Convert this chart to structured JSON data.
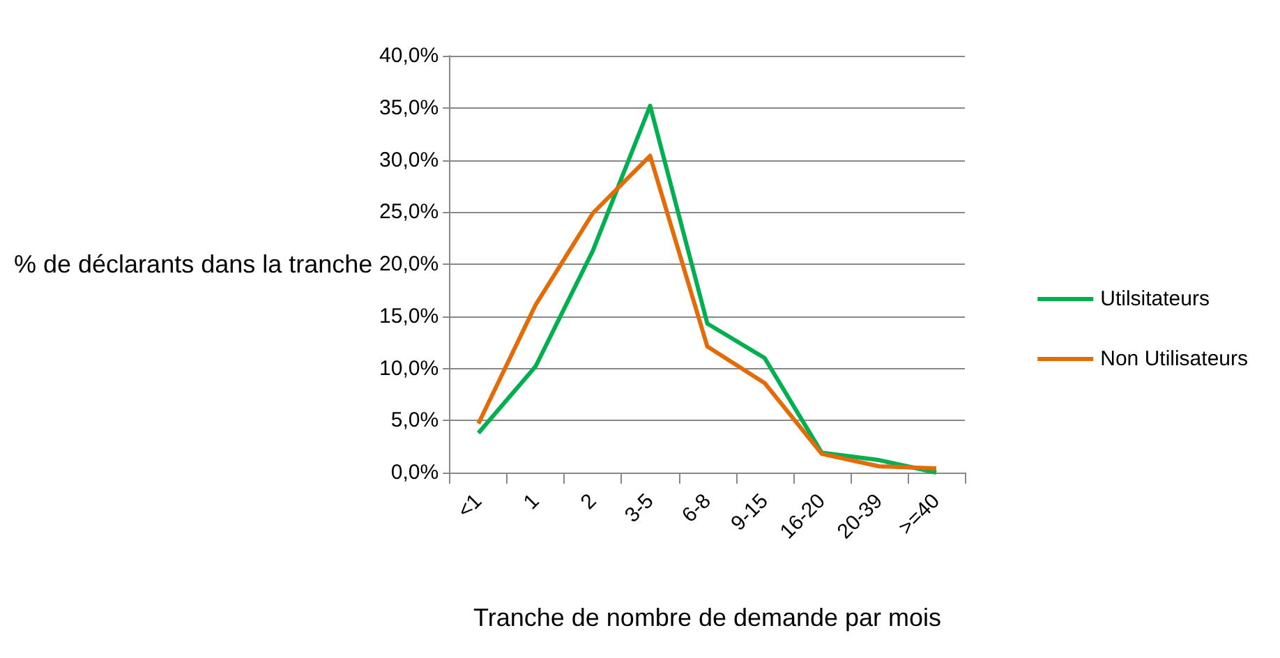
{
  "chart_data": {
    "type": "line",
    "xlabel": "Tranche de nombre de demande par mois",
    "ylabel": "% de déclarants dans la tranche",
    "categories": [
      "<1",
      "1",
      "2",
      "3-5",
      "6-8",
      "9-15",
      "16-20",
      "20-39",
      ">=40"
    ],
    "series": [
      {
        "name": "Utilsitateurs",
        "color": "#00b050",
        "values": [
          3.8,
          10.2,
          21.3,
          35.2,
          14.3,
          11.0,
          1.9,
          1.2,
          0
        ]
      },
      {
        "name": "Non Utilisateurs",
        "color": "#e36c09",
        "values": [
          4.7,
          16.1,
          24.9,
          30.4,
          12.1,
          8.6,
          1.8,
          0.6,
          0.4
        ]
      }
    ],
    "ylim": [
      0,
      40
    ],
    "yticks": [
      {
        "value": 0,
        "label": "0,0%"
      },
      {
        "value": 5,
        "label": "5,0%"
      },
      {
        "value": 10,
        "label": "10,0%"
      },
      {
        "value": 15,
        "label": "15,0%"
      },
      {
        "value": 20,
        "label": "20,0%"
      },
      {
        "value": 25,
        "label": "25,0%"
      },
      {
        "value": 30,
        "label": "30,0%"
      },
      {
        "value": 35,
        "label": "35,0%"
      },
      {
        "value": 40,
        "label": "40,0%"
      }
    ],
    "grid": "y",
    "legend": "right",
    "marker": "none",
    "line_style": "solid"
  }
}
